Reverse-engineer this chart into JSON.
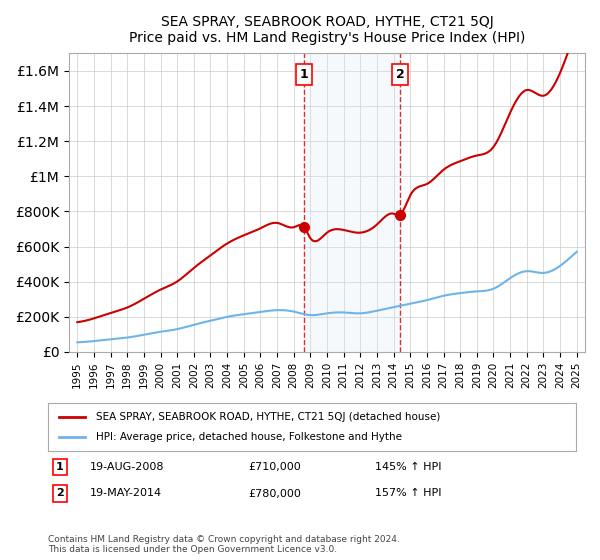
{
  "title": "SEA SPRAY, SEABROOK ROAD, HYTHE, CT21 5QJ",
  "subtitle": "Price paid vs. HM Land Registry's House Price Index (HPI)",
  "legend_line1": "SEA SPRAY, SEABROOK ROAD, HYTHE, CT21 5QJ (detached house)",
  "legend_line2": "HPI: Average price, detached house, Folkestone and Hythe",
  "annotation1_label": "1",
  "annotation1_date": "19-AUG-2008",
  "annotation1_price": "£710,000",
  "annotation1_hpi": "145% ↑ HPI",
  "annotation2_label": "2",
  "annotation2_date": "19-MAY-2014",
  "annotation2_price": "£780,000",
  "annotation2_hpi": "157% ↑ HPI",
  "footnote": "Contains HM Land Registry data © Crown copyright and database right 2024.\nThis data is licensed under the Open Government Licence v3.0.",
  "sale1_year": 2008.63,
  "sale1_value": 710000,
  "sale2_year": 2014.38,
  "sale2_value": 780000,
  "hpi_color": "#6eb4e8",
  "price_color": "#cc0000",
  "background_color": "#ffffff",
  "grid_color": "#cccccc",
  "highlight_color": "#dde8f5",
  "ylim_max": 1700000,
  "ylim_min": 0
}
